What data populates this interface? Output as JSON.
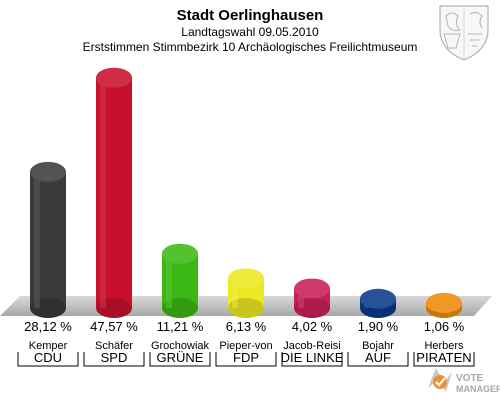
{
  "header": {
    "title": "Stadt Oerlinghausen",
    "subtitle": "Landtagswahl 09.05.2010",
    "description": "Erststimmen Stimmbezirk 10 Archäologisches Freilichtmuseum"
  },
  "logo": {
    "icon": "coat-of-arms-icon"
  },
  "watermark": {
    "line1": "VOTE",
    "line2": "MANAGER"
  },
  "chart_data": {
    "type": "bar",
    "title": "Stadt Oerlinghausen",
    "ylim": [
      0,
      50
    ],
    "grid": false,
    "legend": "none",
    "categories": [
      "CDU",
      "SPD",
      "GRÜNE",
      "FDP",
      "DIE LINKE",
      "AUF",
      "PIRATEN"
    ],
    "candidates": [
      "Kemper",
      "Schäfer",
      "Grochowiak",
      "Pieper-von",
      "Jacob-Reisi",
      "Bojahr",
      "Herbers"
    ],
    "values": [
      28.12,
      47.57,
      11.21,
      6.13,
      4.02,
      1.9,
      1.06
    ],
    "value_labels": [
      "28,12 %",
      "47,57 %",
      "11,21 %",
      "6,13 %",
      "4,02 %",
      "1,90 %",
      "1,06 %"
    ],
    "colors": [
      "#3a3a3a",
      "#c8102e",
      "#3cb814",
      "#ece822",
      "#c81e5a",
      "#0a3a8a",
      "#f08a0a"
    ]
  }
}
